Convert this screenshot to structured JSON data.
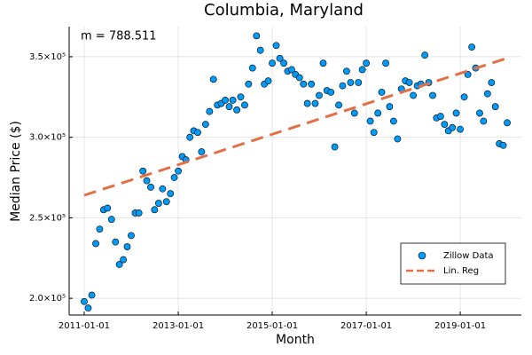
{
  "chart_data": {
    "type": "scatter",
    "title": "Columbia, Maryland",
    "x_label": "Month",
    "y_label": "Median Price ($)",
    "annotation": "m = 788.511",
    "grid": true,
    "legend": "bottom-right",
    "xlim": [
      "2010-09-06",
      "2020-04-20"
    ],
    "xticks": [
      "2011-01-01",
      "2013-01-01",
      "2015-01-01",
      "2017-01-01",
      "2019-01-01"
    ],
    "ylim": [
      189600,
      368700
    ],
    "yticks": [
      {
        "value": 200000,
        "label": "2.0×10⁵"
      },
      {
        "value": 250000,
        "label": "2.5×10⁵"
      },
      {
        "value": 300000,
        "label": "3.0×10⁵"
      },
      {
        "value": 350000,
        "label": "3.5×10⁵"
      }
    ],
    "series": [
      {
        "name": "Zillow Data",
        "style": "markers",
        "color": "#009af9",
        "x": [
          "2011-01-01",
          "2011-02-01",
          "2011-03-01",
          "2011-04-01",
          "2011-05-01",
          "2011-06-01",
          "2011-07-01",
          "2011-08-01",
          "2011-09-01",
          "2011-10-01",
          "2011-11-01",
          "2011-12-01",
          "2012-01-01",
          "2012-02-01",
          "2012-03-01",
          "2012-04-01",
          "2012-05-01",
          "2012-06-01",
          "2012-07-01",
          "2012-08-01",
          "2012-09-01",
          "2012-10-01",
          "2012-11-01",
          "2012-12-01",
          "2013-01-01",
          "2013-02-01",
          "2013-03-01",
          "2013-04-01",
          "2013-05-01",
          "2013-06-01",
          "2013-07-01",
          "2013-08-01",
          "2013-09-01",
          "2013-10-01",
          "2013-11-01",
          "2013-12-01",
          "2014-01-01",
          "2014-02-01",
          "2014-03-01",
          "2014-04-01",
          "2014-05-01",
          "2014-06-01",
          "2014-07-01",
          "2014-08-01",
          "2014-09-01",
          "2014-10-01",
          "2014-11-01",
          "2014-12-01",
          "2015-01-01",
          "2015-02-01",
          "2015-03-01",
          "2015-04-01",
          "2015-05-01",
          "2015-06-01",
          "2015-07-01",
          "2015-08-01",
          "2015-09-01",
          "2015-10-01",
          "2015-11-01",
          "2015-12-01",
          "2016-01-01",
          "2016-02-01",
          "2016-03-01",
          "2016-04-01",
          "2016-05-01",
          "2016-06-01",
          "2016-07-01",
          "2016-08-01",
          "2016-09-01",
          "2016-10-01",
          "2016-11-01",
          "2016-12-01",
          "2017-01-01",
          "2017-02-01",
          "2017-03-01",
          "2017-04-01",
          "2017-05-01",
          "2017-06-01",
          "2017-07-01",
          "2017-08-01",
          "2017-09-01",
          "2017-10-01",
          "2017-11-01",
          "2017-12-01",
          "2018-01-01",
          "2018-02-01",
          "2018-03-01",
          "2018-04-01",
          "2018-05-01",
          "2018-06-01",
          "2018-07-01",
          "2018-08-01",
          "2018-09-01",
          "2018-10-01",
          "2018-11-01",
          "2018-12-01",
          "2019-01-01",
          "2019-02-01",
          "2019-03-01",
          "2019-04-01",
          "2019-05-01",
          "2019-06-01",
          "2019-07-01",
          "2019-08-01",
          "2019-09-01",
          "2019-10-01",
          "2019-11-01",
          "2019-12-01",
          "2020-01-01"
        ],
        "values": [
          198000,
          194000,
          202000,
          234000,
          243000,
          255000,
          256000,
          249000,
          235000,
          221000,
          224000,
          232000,
          239000,
          253000,
          253000,
          279000,
          273000,
          269000,
          255000,
          259000,
          268000,
          260000,
          265000,
          275000,
          279000,
          288000,
          286000,
          300000,
          304000,
          303000,
          291000,
          308000,
          316000,
          336000,
          320000,
          321000,
          323000,
          319000,
          323000,
          317000,
          325000,
          320000,
          333000,
          343000,
          363000,
          354000,
          333000,
          335000,
          346000,
          357000,
          349000,
          346000,
          341000,
          342000,
          339000,
          337000,
          333000,
          321000,
          333000,
          321000,
          326000,
          346000,
          329000,
          328000,
          294000,
          320000,
          332000,
          341000,
          334000,
          315000,
          334000,
          342000,
          346000,
          310000,
          303000,
          315000,
          328000,
          346000,
          319000,
          310000,
          299000,
          330000,
          335000,
          334000,
          326000,
          332000,
          333000,
          351000,
          334000,
          326000,
          312000,
          313000,
          308000,
          304000,
          306000,
          315000,
          305000,
          325000,
          339000,
          356000,
          343000,
          315000,
          310000,
          327000,
          334000,
          319000,
          296000,
          295000,
          309000
        ]
      },
      {
        "name": "Lin. Reg",
        "style": "dashed-line",
        "color": "#e26f46",
        "x": [
          "2011-01-01",
          "2020-01-01"
        ],
        "values": [
          264000,
          349159
        ]
      }
    ]
  }
}
